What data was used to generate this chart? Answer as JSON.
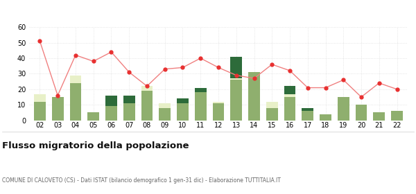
{
  "years": [
    "02",
    "03",
    "04",
    "05",
    "06",
    "07",
    "08",
    "09",
    "10",
    "11",
    "12",
    "13",
    "14",
    "15",
    "16",
    "17",
    "18",
    "19",
    "20",
    "21",
    "22"
  ],
  "iscritti_altri_comuni": [
    12,
    15,
    24,
    5,
    9,
    11,
    19,
    8,
    11,
    18,
    11,
    26,
    31,
    8,
    15,
    6,
    4,
    15,
    10,
    5,
    6
  ],
  "iscritti_estero": [
    5,
    0,
    5,
    0,
    0,
    0,
    3,
    3,
    0,
    0,
    1,
    1,
    0,
    4,
    2,
    0,
    0,
    0,
    0,
    0,
    0
  ],
  "iscritti_altri": [
    0,
    0,
    0,
    0,
    7,
    5,
    0,
    0,
    3,
    3,
    0,
    14,
    0,
    0,
    5,
    2,
    0,
    0,
    0,
    0,
    0
  ],
  "cancellati": [
    51,
    16,
    42,
    38,
    44,
    31,
    22,
    33,
    34,
    40,
    34,
    29,
    27,
    36,
    32,
    21,
    21,
    26,
    15,
    24,
    20
  ],
  "color_altri_comuni": "#8faf6e",
  "color_estero": "#e8f0c8",
  "color_altri": "#2d6b3a",
  "color_cancellati": "#e83030",
  "color_cancellati_line": "#f08080",
  "ylim": [
    0,
    60
  ],
  "yticks": [
    0,
    10,
    20,
    30,
    40,
    50,
    60
  ],
  "title": "Flusso migratorio della popolazione",
  "subtitle": "COMUNE DI CALOVETO (CS) - Dati ISTAT (bilancio demografico 1 gen-31 dic) - Elaborazione TUTTITALIA.IT",
  "bg_color": "#ffffff",
  "grid_color": "#dddddd"
}
